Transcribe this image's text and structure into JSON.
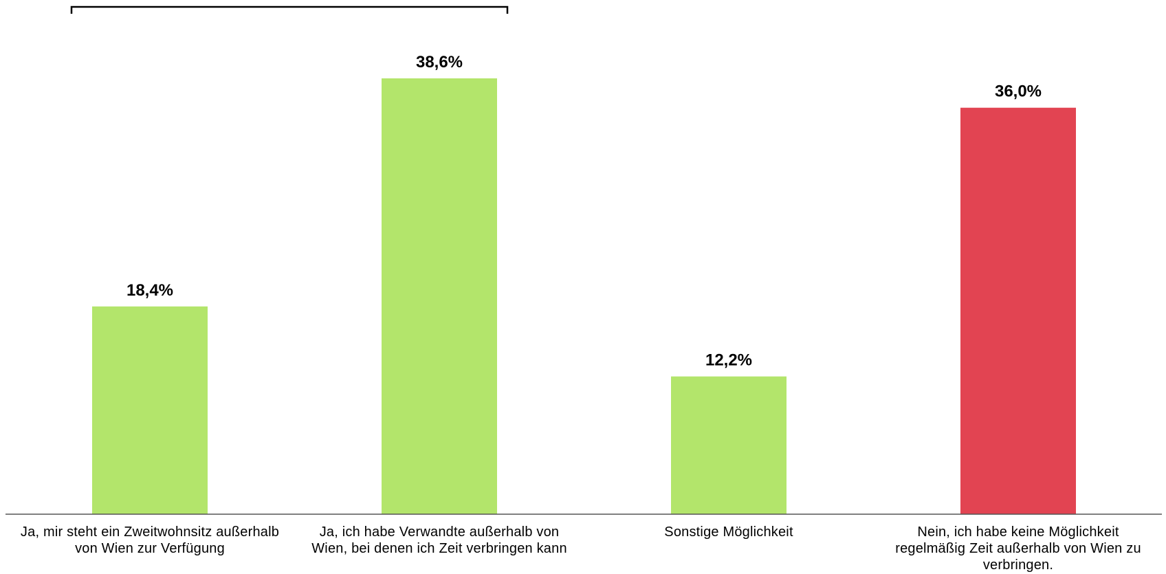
{
  "chart_data": {
    "type": "bar",
    "categories": [
      "Ja, mir steht ein Zweitwohnsitz außerhalb von Wien zur Verfügung",
      "Ja, ich habe Verwandte außerhalb von Wien, bei denen ich Zeit verbringen kann",
      "Sonstige Möglichkeit",
      "Nein, ich habe keine Möglichkeit regelmäßig Zeit außerhalb von Wien zu verbringen."
    ],
    "values": [
      18.4,
      38.6,
      12.2,
      36.0
    ],
    "value_labels": [
      "18,4%",
      "38,6%",
      "12,2%",
      "36,0%"
    ],
    "colors": [
      "#b3e56b",
      "#b3e56b",
      "#b3e56b",
      "#e24452"
    ],
    "ylim": [
      0,
      40
    ],
    "grid": false,
    "legend": "none",
    "bracket_over_categories": [
      0,
      1
    ]
  }
}
